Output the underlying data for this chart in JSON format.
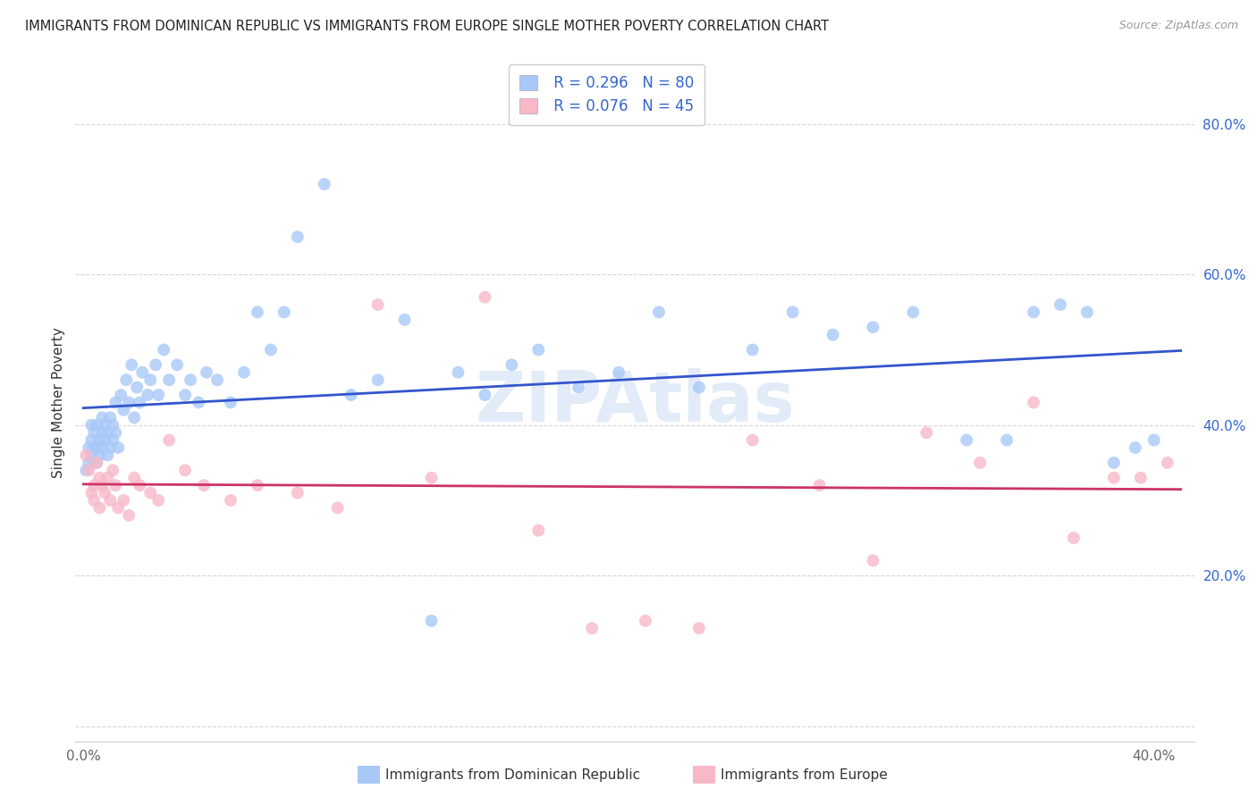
{
  "title": "IMMIGRANTS FROM DOMINICAN REPUBLIC VS IMMIGRANTS FROM EUROPE SINGLE MOTHER POVERTY CORRELATION CHART",
  "source": "Source: ZipAtlas.com",
  "ylabel": "Single Mother Poverty",
  "series1_label": "Immigrants from Dominican Republic",
  "series1_R": "R = 0.296",
  "series1_N": "N = 80",
  "series1_color": "#a8c8f8",
  "series1_edge_color": "#a8c8f8",
  "series1_line_color": "#3355cc",
  "series2_label": "Immigrants from Europe",
  "series2_R": "R = 0.076",
  "series2_N": "N = 45",
  "series2_color": "#f8b8c8",
  "series2_edge_color": "#f8b8c8",
  "series2_line_color": "#cc3366",
  "background_color": "#ffffff",
  "grid_color": "#cccccc",
  "text_color": "#3366cc",
  "title_color": "#222222",
  "xlim": [
    -0.003,
    0.415
  ],
  "ylim": [
    -0.02,
    0.88
  ],
  "y_ticks": [
    0.0,
    0.2,
    0.4,
    0.6,
    0.8
  ],
  "y_tick_labels": [
    "",
    "20.0%",
    "40.0%",
    "60.0%",
    "80.0%"
  ],
  "x_ticks": [
    0.0,
    0.05,
    0.1,
    0.15,
    0.2,
    0.25,
    0.3,
    0.35,
    0.4
  ],
  "x_tick_labels": [
    "0.0%",
    "",
    "",
    "",
    "",
    "",
    "",
    "",
    "40.0%"
  ],
  "marker_size": 100,
  "line_width": 2.0,
  "watermark_text": "ZIPAtlas",
  "watermark_color": "#c0d4f0",
  "watermark_alpha": 0.45,
  "series1_x": [
    0.001,
    0.002,
    0.002,
    0.003,
    0.003,
    0.003,
    0.004,
    0.004,
    0.005,
    0.005,
    0.005,
    0.006,
    0.006,
    0.007,
    0.007,
    0.007,
    0.008,
    0.008,
    0.009,
    0.009,
    0.01,
    0.01,
    0.011,
    0.011,
    0.012,
    0.012,
    0.013,
    0.014,
    0.015,
    0.016,
    0.017,
    0.018,
    0.019,
    0.02,
    0.021,
    0.022,
    0.024,
    0.025,
    0.027,
    0.028,
    0.03,
    0.032,
    0.035,
    0.038,
    0.04,
    0.043,
    0.046,
    0.05,
    0.055,
    0.06,
    0.065,
    0.07,
    0.075,
    0.08,
    0.09,
    0.1,
    0.11,
    0.12,
    0.13,
    0.14,
    0.15,
    0.16,
    0.17,
    0.185,
    0.2,
    0.215,
    0.23,
    0.25,
    0.265,
    0.28,
    0.295,
    0.31,
    0.33,
    0.345,
    0.355,
    0.365,
    0.375,
    0.385,
    0.393,
    0.4
  ],
  "series1_y": [
    0.34,
    0.37,
    0.35,
    0.36,
    0.38,
    0.4,
    0.37,
    0.39,
    0.35,
    0.37,
    0.4,
    0.36,
    0.38,
    0.37,
    0.39,
    0.41,
    0.38,
    0.4,
    0.36,
    0.39,
    0.37,
    0.41,
    0.38,
    0.4,
    0.43,
    0.39,
    0.37,
    0.44,
    0.42,
    0.46,
    0.43,
    0.48,
    0.41,
    0.45,
    0.43,
    0.47,
    0.44,
    0.46,
    0.48,
    0.44,
    0.5,
    0.46,
    0.48,
    0.44,
    0.46,
    0.43,
    0.47,
    0.46,
    0.43,
    0.47,
    0.55,
    0.5,
    0.55,
    0.65,
    0.72,
    0.44,
    0.46,
    0.54,
    0.14,
    0.47,
    0.44,
    0.48,
    0.5,
    0.45,
    0.47,
    0.55,
    0.45,
    0.5,
    0.55,
    0.52,
    0.53,
    0.55,
    0.38,
    0.38,
    0.55,
    0.56,
    0.55,
    0.35,
    0.37,
    0.38
  ],
  "series2_x": [
    0.001,
    0.002,
    0.003,
    0.004,
    0.004,
    0.005,
    0.006,
    0.006,
    0.007,
    0.008,
    0.009,
    0.01,
    0.011,
    0.012,
    0.013,
    0.015,
    0.017,
    0.019,
    0.021,
    0.025,
    0.028,
    0.032,
    0.038,
    0.045,
    0.055,
    0.065,
    0.08,
    0.095,
    0.11,
    0.13,
    0.15,
    0.17,
    0.19,
    0.21,
    0.23,
    0.25,
    0.275,
    0.295,
    0.315,
    0.335,
    0.355,
    0.37,
    0.385,
    0.395,
    0.405
  ],
  "series2_y": [
    0.36,
    0.34,
    0.31,
    0.32,
    0.3,
    0.35,
    0.33,
    0.29,
    0.32,
    0.31,
    0.33,
    0.3,
    0.34,
    0.32,
    0.29,
    0.3,
    0.28,
    0.33,
    0.32,
    0.31,
    0.3,
    0.38,
    0.34,
    0.32,
    0.3,
    0.32,
    0.31,
    0.29,
    0.56,
    0.33,
    0.57,
    0.26,
    0.13,
    0.14,
    0.13,
    0.38,
    0.32,
    0.22,
    0.39,
    0.35,
    0.43,
    0.25,
    0.33,
    0.33,
    0.35
  ]
}
